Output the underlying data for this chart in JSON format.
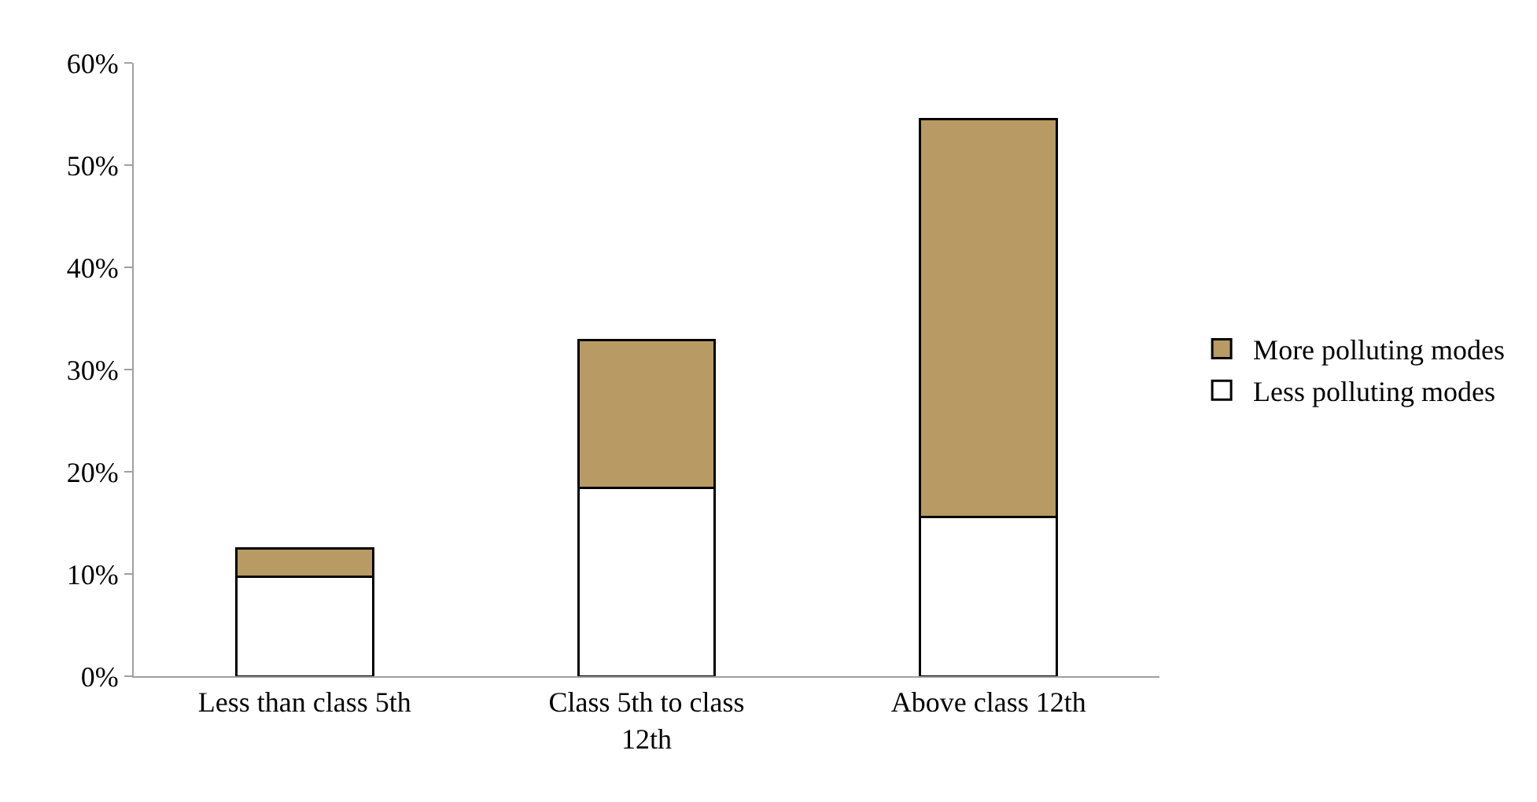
{
  "chart_data": {
    "type": "bar",
    "stacked": true,
    "categories": [
      "Less than class 5th",
      "Class 5th to class 12th",
      "Above class 12th"
    ],
    "series": [
      {
        "name": "Less polluting modes",
        "color": "#ffffff",
        "values": [
          9.7,
          18.4,
          15.6
        ]
      },
      {
        "name": "More polluting modes",
        "color": "#b89a64",
        "values": [
          2.8,
          14.5,
          38.9
        ]
      }
    ],
    "ylim": [
      0,
      60
    ],
    "yticks": [
      {
        "value": 0,
        "label": "0%"
      },
      {
        "value": 10,
        "label": "10%"
      },
      {
        "value": 20,
        "label": "20%"
      },
      {
        "value": 30,
        "label": "30%"
      },
      {
        "value": 40,
        "label": "40%"
      },
      {
        "value": 50,
        "label": "50%"
      },
      {
        "value": 60,
        "label": "60%"
      }
    ],
    "legend": "right"
  }
}
